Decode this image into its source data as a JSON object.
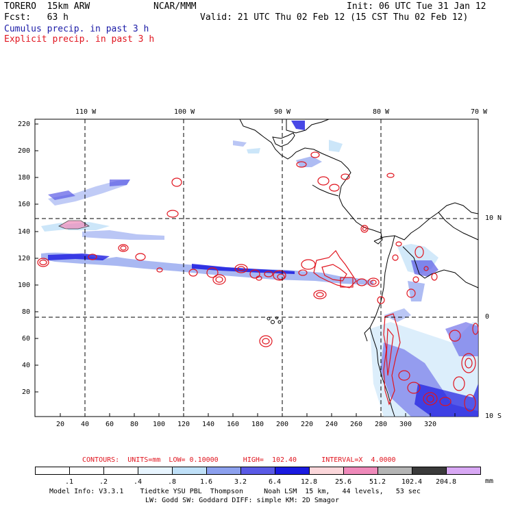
{
  "header": {
    "model": "TORERO  15km ARW",
    "org": "NCAR/MMM",
    "init": "Init: 06 UTC Tue 31 Jan 12",
    "fcst": "Fcst:   63 h",
    "valid": "Valid: 21 UTC Thu 02 Feb 12 (15 CST Thu 02 Feb 12)",
    "cumulus_label": "Cumulus precip. in past 3 h",
    "explicit_label": "Explicit precip. in past 3 h"
  },
  "colors": {
    "cumulus": "#1a1aa6",
    "explicit": "#e0141e",
    "contour": "#e0141e",
    "land": "#000000"
  },
  "map": {
    "top_lon_labels": [
      "110 W",
      "100 W",
      "90 W",
      "80 W",
      "70 W"
    ],
    "right_lat_labels": [
      "10 N",
      "0",
      "10 S"
    ],
    "left_ticks": [
      "220",
      "200",
      "180",
      "160",
      "140",
      "120",
      "100",
      "80",
      "60",
      "40",
      "20"
    ],
    "bottom_ticks": [
      "20",
      "40",
      "60",
      "80",
      "100",
      "120",
      "140",
      "160",
      "180",
      "200",
      "220",
      "240",
      "260",
      "280",
      "300",
      "320"
    ]
  },
  "contours_info": {
    "text": "CONTOURS:  UNITS=mm  LOW= 0.10000      HIGH=  102.40      INTERVAL=X  4.0000"
  },
  "colorbar": {
    "labels": [
      ".1",
      ".2",
      ".4",
      ".8",
      "1.6",
      "3.2",
      "6.4",
      "12.8",
      "25.6",
      "51.2",
      "102.4",
      "204.8"
    ],
    "colors": [
      "#ffffff",
      "#ffffff",
      "#ffffff",
      "#e8f5ff",
      "#bfe0f8",
      "#8ca0ee",
      "#5a5ae6",
      "#1a1ae0",
      "#fbd6da",
      "#ef8aba",
      "#b4b4b4",
      "#3a3a3a",
      "#d8a8f4"
    ],
    "units": "mm"
  },
  "footer": {
    "line1": "Model Info: V3.3.1    Tiedtke YSU PBL  Thompson     Noah LSM  15 km,   44 levels,   53 sec",
    "line2": "LW: Godd SW: Goddard DIFF: simple KM: 2D Smagor"
  }
}
